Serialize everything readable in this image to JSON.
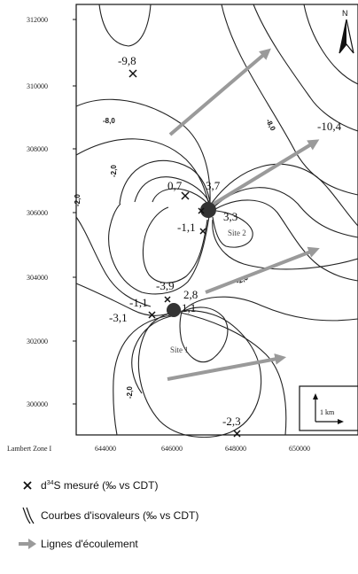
{
  "map": {
    "y_ticks": [
      "312000",
      "310000",
      "308000",
      "306000",
      "304000",
      "302000",
      "300000"
    ],
    "x_ticks": [
      "644000",
      "646000",
      "648000",
      "650000"
    ],
    "projection_label": "Lambert Zone I",
    "north_label": "N",
    "scale_label": "1 km",
    "sites": [
      "Site 2",
      "Site 1"
    ],
    "point_values": [
      "-9,8",
      "-10,4",
      "0,7",
      "3,7",
      "-1,1",
      "3,3",
      "-3,9",
      "-1,1",
      "-3,1",
      "2,8",
      "1,1",
      "-2,3"
    ],
    "contour_values": [
      "-8,0",
      "-8,0",
      "-2,0",
      "-2,0",
      "-2,0",
      "-2,0"
    ]
  },
  "legend": {
    "measured_prefix": "d",
    "measured_sup": "34",
    "measured_text": "S mesuré (‰ vs CDT)",
    "isolines": "Courbes d'isovaleurs (‰ vs CDT)",
    "flow_lines": "Lignes d'écoulement"
  },
  "colors": {
    "arrow": "#9a9a9a",
    "contour": "#222222",
    "background": "#ffffff"
  }
}
